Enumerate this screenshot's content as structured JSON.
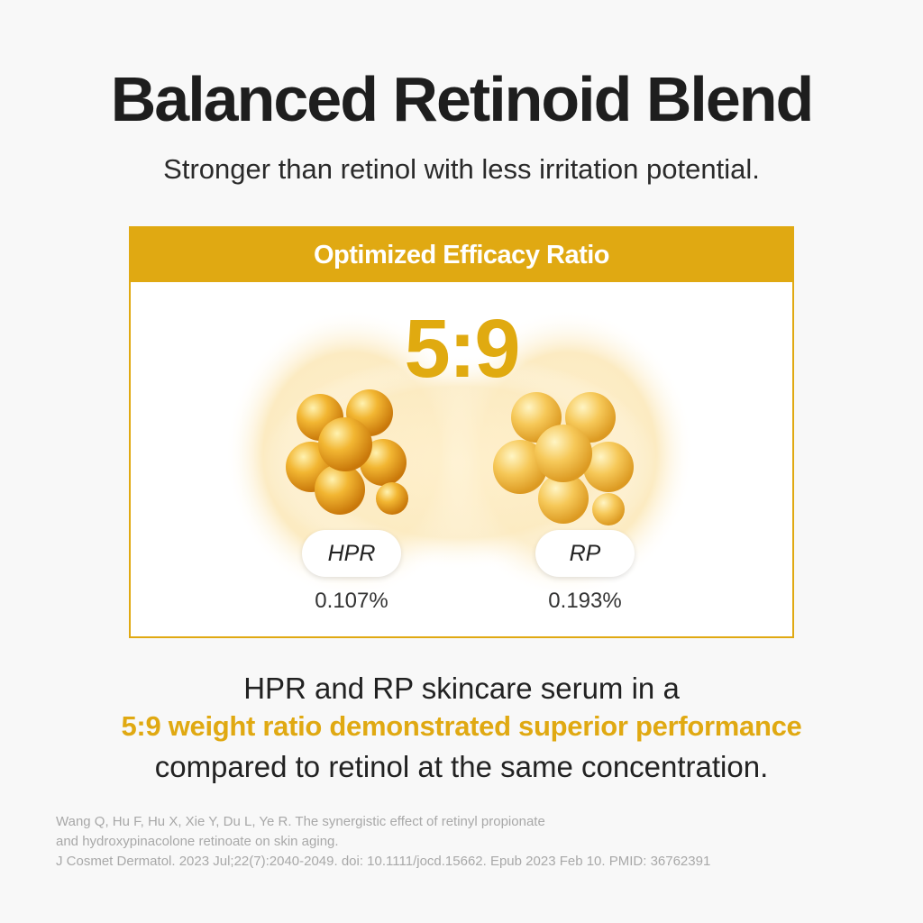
{
  "header": {
    "title": "Balanced Retinoid Blend",
    "subtitle": "Stronger than retinol with less irritation potential."
  },
  "card": {
    "heading": "Optimized Efficacy Ratio",
    "ratio": "5:9",
    "ingredients": [
      {
        "name": "HPR",
        "percent": "0.107%"
      },
      {
        "name": "RP",
        "percent": "0.193%"
      }
    ]
  },
  "body": [
    "HPR and RP skincare serum in a",
    "5:9 weight ratio demonstrated superior performance",
    "compared to retinol at the same concentration."
  ],
  "citation": [
    "Wang Q, Hu F, Hu X, Xie Y, Du L, Ye R. The synergistic effect of retinyl propionate",
    "and hydroxypinacolone retinoate on skin aging.",
    "J Cosmet Dermatol. 2023 Jul;22(7):2040-2049. doi: 10.1111/jocd.15662. Epub 2023 Feb 10. PMID: 36762391"
  ]
}
